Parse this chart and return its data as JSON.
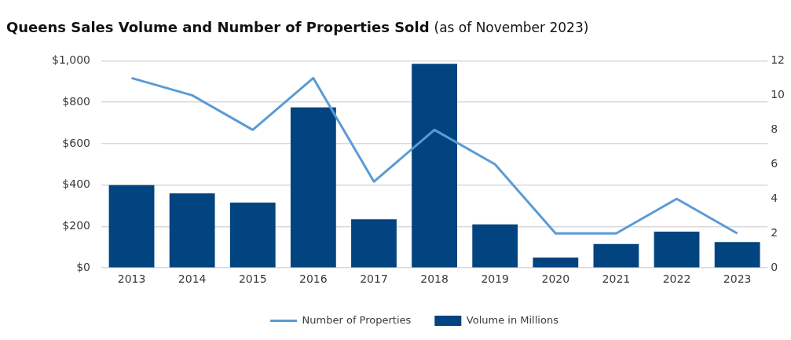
{
  "chart_data": {
    "type": "bar",
    "title": "Queens Sales Volume and Number of Properties Sold",
    "subtitle": "(as of November 2023)",
    "categories": [
      "2013",
      "2014",
      "2015",
      "2016",
      "2017",
      "2018",
      "2019",
      "2020",
      "2021",
      "2022",
      "2023"
    ],
    "series": [
      {
        "name": "Number of Properties",
        "type": "line",
        "axis": "y2",
        "color": "#5b9bd5",
        "values": [
          11,
          10,
          8,
          11,
          5,
          8,
          6,
          2,
          2,
          4,
          2
        ]
      },
      {
        "name": "Volume in Millions",
        "color": "#02447f",
        "values": [
          400,
          360,
          315,
          775,
          235,
          985,
          210,
          50,
          115,
          175,
          125
        ]
      }
    ],
    "ylim": [
      0,
      1000
    ],
    "yticks": [
      {
        "value": 0,
        "label": "$0"
      },
      {
        "value": 200,
        "label": "$200"
      },
      {
        "value": 400,
        "label": "$400"
      },
      {
        "value": 600,
        "label": "$600"
      },
      {
        "value": 800,
        "label": "$800"
      },
      {
        "value": 1000,
        "label": "$1,000"
      }
    ],
    "y2lim": [
      0,
      12
    ],
    "y2ticks": [
      0,
      2,
      4,
      6,
      8,
      10,
      12
    ],
    "grid": "y",
    "legend": "bottom"
  }
}
